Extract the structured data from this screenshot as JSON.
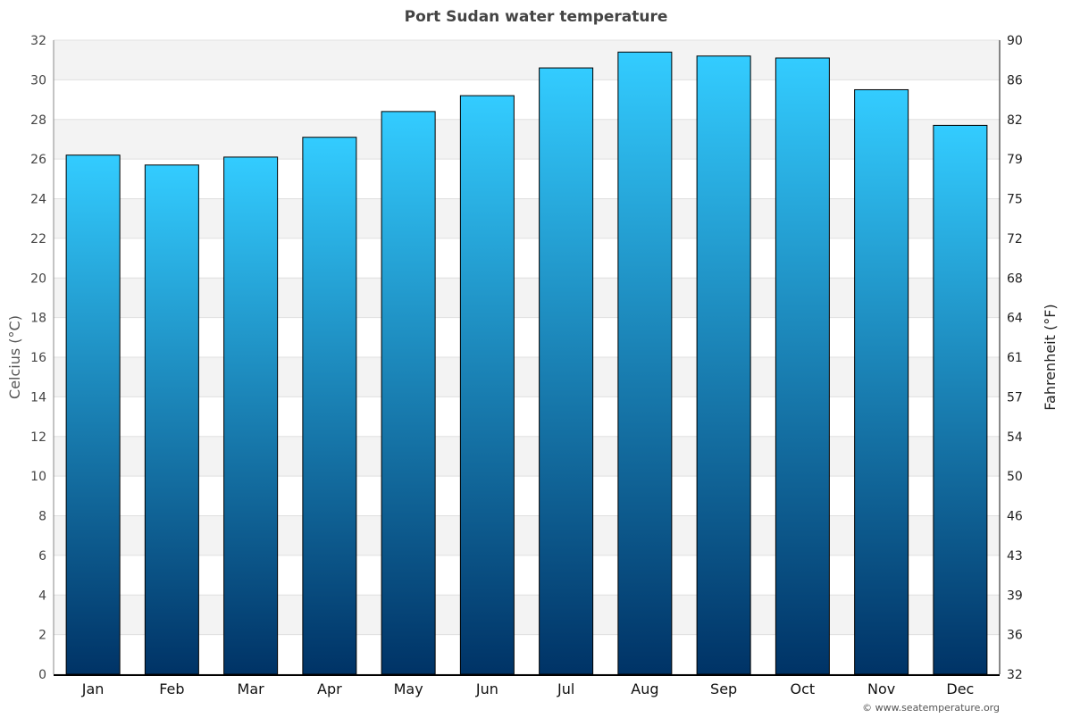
{
  "chart_data": {
    "type": "bar",
    "title": "Port Sudan water temperature",
    "ylabel": "Celcius (°C)",
    "ylabel_right": "Fahrenheit (°F)",
    "categories": [
      "Jan",
      "Feb",
      "Mar",
      "Apr",
      "May",
      "Jun",
      "Jul",
      "Aug",
      "Sep",
      "Oct",
      "Nov",
      "Dec"
    ],
    "values": [
      26.2,
      25.7,
      26.1,
      27.1,
      28.4,
      29.2,
      30.6,
      31.4,
      31.2,
      31.1,
      29.5,
      27.7
    ],
    "ylim": [
      0,
      32
    ],
    "yticks": [
      0,
      2,
      4,
      6,
      8,
      10,
      12,
      14,
      16,
      18,
      20,
      22,
      24,
      26,
      28,
      30,
      32
    ],
    "yticks_right": [
      "32",
      "36",
      "39",
      "43",
      "46",
      "50",
      "54",
      "57",
      "61",
      "64",
      "68",
      "72",
      "75",
      "79",
      "82",
      "86",
      "90"
    ],
    "grid": true,
    "colors": {
      "bar_top": "#33ccff",
      "bar_bottom": "#003366",
      "band": "#f3f3f3",
      "title": "#444444"
    }
  },
  "footer": {
    "credit": "© www.seatemperature.org"
  }
}
